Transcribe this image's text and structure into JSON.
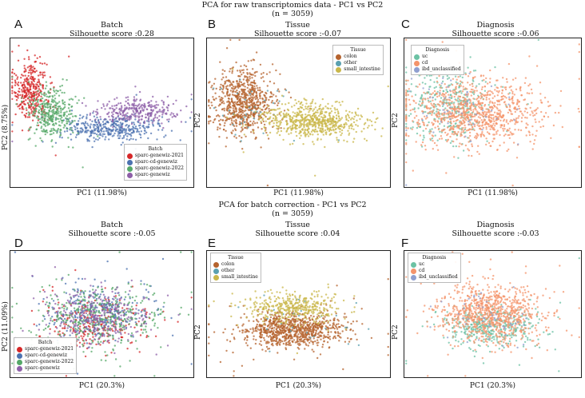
{
  "top_section": {
    "title_line1": "PCA for raw transcriptomics data - PC1 vs PC2",
    "title_line2": "(n = 3059)"
  },
  "bottom_section": {
    "title_line1": "PCA for batch correction - PC1 vs PC2",
    "title_line2": "(n = 3059)"
  },
  "colors": {
    "batch": [
      "#d62728",
      "#4c72b0",
      "#55a868",
      "#8e5fa8"
    ],
    "tissue": [
      "#b5632e",
      "#5aa0b0",
      "#c9b74a"
    ],
    "diagnosis": [
      "#6cc2a4",
      "#f4946b",
      "#8f9fd0"
    ]
  },
  "chart_data": [
    {
      "id": "A",
      "type": "scatter",
      "title": "Batch",
      "subtitle": "Silhouette score :0.28",
      "xlabel": "PC1 (11.98%)",
      "ylabel": "PC2 (8.75%)",
      "legend_title": "Batch",
      "legend_position": "bottom-right",
      "series": [
        {
          "name": "sparc-genewiz-2021",
          "cx": -0.78,
          "cy": 0.28,
          "sx": 0.1,
          "sy": 0.2,
          "n": 360
        },
        {
          "name": "sparc-cd-genewiz",
          "cx": 0.12,
          "cy": -0.2,
          "sx": 0.26,
          "sy": 0.09,
          "n": 400
        },
        {
          "name": "sparc-genewiz-2022",
          "cx": -0.55,
          "cy": 0.0,
          "sx": 0.12,
          "sy": 0.17,
          "n": 360
        },
        {
          "name": "sparc-genewiz",
          "cx": 0.38,
          "cy": 0.02,
          "sx": 0.22,
          "sy": 0.08,
          "n": 300
        }
      ]
    },
    {
      "id": "B",
      "type": "scatter",
      "title": "Tissue",
      "subtitle": "Silhouette score :-0.07",
      "xlabel": "PC1 (11.98%)",
      "ylabel": "PC2",
      "legend_title": "Tissue",
      "legend_position": "top-right",
      "series": [
        {
          "name": "colon",
          "cx": -0.6,
          "cy": 0.15,
          "sx": 0.16,
          "sy": 0.22,
          "n": 750
        },
        {
          "name": "other",
          "cx": -0.55,
          "cy": 0.1,
          "sx": 0.2,
          "sy": 0.25,
          "n": 40
        },
        {
          "name": "small_intestine",
          "cx": 0.15,
          "cy": -0.12,
          "sx": 0.28,
          "sy": 0.12,
          "n": 650
        }
      ]
    },
    {
      "id": "C",
      "type": "scatter",
      "title": "Diagnosis",
      "subtitle": "Silhouette score :-0.06",
      "xlabel": "PC1 (11.98%)",
      "ylabel": "PC2",
      "legend_title": "Diagnosis",
      "legend_position": "top-left",
      "series": [
        {
          "name": "uc",
          "cx": -0.5,
          "cy": 0.1,
          "sx": 0.25,
          "sy": 0.25,
          "n": 350
        },
        {
          "name": "cd",
          "cx": -0.2,
          "cy": 0.0,
          "sx": 0.4,
          "sy": 0.22,
          "n": 1000
        },
        {
          "name": "ibd_unclassified",
          "cx": -0.4,
          "cy": 0.05,
          "sx": 0.3,
          "sy": 0.22,
          "n": 60
        }
      ]
    },
    {
      "id": "D",
      "type": "scatter",
      "title": "Batch",
      "subtitle": "Silhouette score :-0.05",
      "xlabel": "PC1 (20.3%)",
      "ylabel": "PC2 (11.09%)",
      "legend_title": "Batch",
      "legend_position": "bottom-left",
      "series": [
        {
          "name": "sparc-genewiz-2021",
          "cx": -0.05,
          "cy": -0.15,
          "sx": 0.32,
          "sy": 0.2,
          "n": 250
        },
        {
          "name": "sparc-cd-genewiz",
          "cx": -0.05,
          "cy": 0.05,
          "sx": 0.3,
          "sy": 0.22,
          "n": 280
        },
        {
          "name": "sparc-genewiz-2022",
          "cx": -0.02,
          "cy": -0.05,
          "sx": 0.35,
          "sy": 0.25,
          "n": 420
        },
        {
          "name": "sparc-genewiz",
          "cx": -0.05,
          "cy": -0.05,
          "sx": 0.3,
          "sy": 0.22,
          "n": 300
        }
      ]
    },
    {
      "id": "E",
      "type": "scatter",
      "title": "Tissue",
      "subtitle": "Silhouette score :0.04",
      "xlabel": "PC1 (20.3%)",
      "ylabel": "PC2",
      "legend_title": "Tissue",
      "legend_position": "top-left",
      "series": [
        {
          "name": "colon",
          "cx": -0.05,
          "cy": -0.25,
          "sx": 0.28,
          "sy": 0.14,
          "n": 900
        },
        {
          "name": "other",
          "cx": 0.0,
          "cy": -0.1,
          "sx": 0.3,
          "sy": 0.2,
          "n": 30
        },
        {
          "name": "small_intestine",
          "cx": -0.05,
          "cy": 0.12,
          "sx": 0.26,
          "sy": 0.12,
          "n": 400
        }
      ]
    },
    {
      "id": "F",
      "type": "scatter",
      "title": "Diagnosis",
      "subtitle": "Silhouette score :-0.03",
      "xlabel": "PC1 (20.3%)",
      "ylabel": "PC2",
      "legend_title": "Diagnosis",
      "legend_position": "top-left",
      "series": [
        {
          "name": "uc",
          "cx": -0.05,
          "cy": -0.22,
          "sx": 0.28,
          "sy": 0.16,
          "n": 400
        },
        {
          "name": "cd",
          "cx": -0.02,
          "cy": 0.02,
          "sx": 0.3,
          "sy": 0.24,
          "n": 900
        },
        {
          "name": "ibd_unclassified",
          "cx": -0.05,
          "cy": -0.1,
          "sx": 0.25,
          "sy": 0.2,
          "n": 50
        }
      ]
    }
  ]
}
